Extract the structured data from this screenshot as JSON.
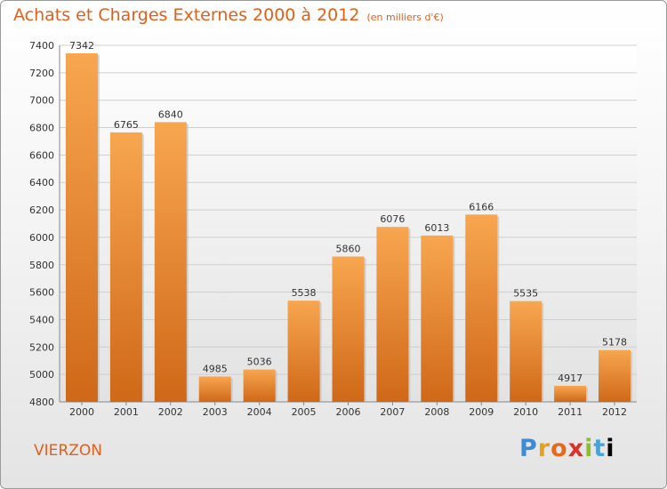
{
  "title": "Achats et Charges Externes 2000 à 2012",
  "subtitle": "(en milliers d'€)",
  "location": "VIERZON",
  "logo": {
    "letters": [
      "P",
      "r",
      "o",
      "x",
      "i",
      "t",
      "i"
    ]
  },
  "colors": {
    "accent": "#e0601c",
    "bar_light": "#f8a650",
    "bar_dark": "#cf6818"
  },
  "chart_data": {
    "type": "bar",
    "categories": [
      "2000",
      "2001",
      "2002",
      "2003",
      "2004",
      "2005",
      "2006",
      "2007",
      "2008",
      "2009",
      "2010",
      "2011",
      "2012"
    ],
    "values": [
      7342,
      6765,
      6840,
      4985,
      5036,
      5538,
      5860,
      6076,
      6013,
      6166,
      5535,
      4917,
      5178
    ],
    "title": "Achats et Charges Externes 2000 à 2012",
    "subtitle": "(en milliers d'€)",
    "xlabel": "",
    "ylabel": "",
    "ylim": [
      4800,
      7400
    ],
    "yticks": [
      4800,
      5000,
      5200,
      5400,
      5600,
      5800,
      6000,
      6200,
      6400,
      6600,
      6800,
      7000,
      7200,
      7400
    ],
    "grid": true,
    "legend": "none"
  }
}
